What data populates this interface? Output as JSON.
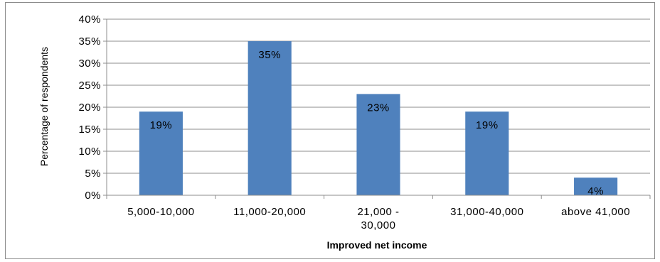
{
  "chart_data": {
    "type": "bar",
    "categories": [
      "5,000-10,000",
      "11,000-20,000",
      "21,000 - 30,000",
      "31,000-40,000",
      "above 41,000"
    ],
    "category_lines": [
      [
        "5,000-10,000"
      ],
      [
        "11,000-20,000"
      ],
      [
        "21,000 -",
        "30,000"
      ],
      [
        "31,000-40,000"
      ],
      [
        "above 41,000"
      ]
    ],
    "values": [
      19,
      35,
      23,
      19,
      4
    ],
    "data_labels": [
      "19%",
      "35%",
      "23%",
      "19%",
      "4%"
    ],
    "xlabel": "Improved net income",
    "ylabel": "Percentage of respondents",
    "ylim": [
      0,
      40
    ],
    "yticks": [
      "0%",
      "5%",
      "10%",
      "15%",
      "20%",
      "25%",
      "30%",
      "35%",
      "40%"
    ],
    "grid": true,
    "legend": "none",
    "bar_color": "#4f81bd"
  }
}
